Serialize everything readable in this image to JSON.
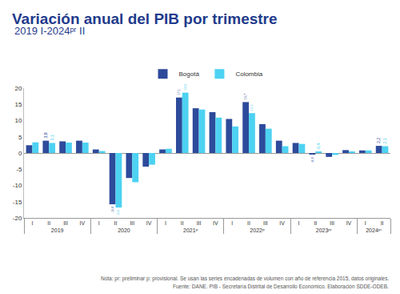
{
  "chart_data": {
    "type": "bar",
    "title": "Variación anual del PIB por trimestre",
    "subtitle": "2019 I-2024ᵖʳ II",
    "categories": [
      [
        "2019",
        "I"
      ],
      [
        "2019",
        "II"
      ],
      [
        "2019",
        "III"
      ],
      [
        "2019",
        "IV"
      ],
      [
        "2020",
        "I"
      ],
      [
        "2020",
        "II"
      ],
      [
        "2020",
        "III"
      ],
      [
        "2020",
        "IV"
      ],
      [
        "2021ᵖ",
        "I"
      ],
      [
        "2021ᵖ",
        "II"
      ],
      [
        "2021ᵖ",
        "III"
      ],
      [
        "2021ᵖ",
        "IV"
      ],
      [
        "2022ᵖ",
        "I"
      ],
      [
        "2022ᵖ",
        "II"
      ],
      [
        "2022ᵖ",
        "III"
      ],
      [
        "2022ᵖ",
        "IV"
      ],
      [
        "2023ᵖʳ",
        "I"
      ],
      [
        "2023ᵖʳ",
        "II"
      ],
      [
        "2023ᵖʳ",
        "III"
      ],
      [
        "2023ᵖʳ",
        "IV"
      ],
      [
        "2024ᵖʳ",
        "I"
      ],
      [
        "2024ᵖʳ",
        "II"
      ]
    ],
    "series": [
      {
        "name": "Bogotá",
        "color": "#2d4a9b",
        "values": [
          2.4,
          3.8,
          3.6,
          3.8,
          1.1,
          -15.8,
          -7.7,
          -4.2,
          1.1,
          17.1,
          13.8,
          12.6,
          10.5,
          15.7,
          8.9,
          3.8,
          3.1,
          -0.3,
          -1.2,
          0.9,
          0.8,
          2.2
        ],
        "value_labels": [
          null,
          "3,8",
          null,
          null,
          null,
          "-15,8",
          null,
          null,
          null,
          "17,1",
          null,
          null,
          null,
          "15,7",
          null,
          null,
          null,
          "-0,3",
          null,
          null,
          null,
          "2,2"
        ]
      },
      {
        "name": "Colombia",
        "color": "#4dd2f2",
        "values": [
          3.3,
          3.1,
          3.2,
          3.2,
          0.6,
          -16.8,
          -9.0,
          -3.6,
          1.3,
          18.6,
          13.4,
          10.9,
          8.2,
          12.3,
          7.5,
          2.1,
          2.8,
          0.4,
          -0.6,
          0.3,
          0.8,
          2.1
        ],
        "value_labels": [
          null,
          "3,1",
          null,
          null,
          null,
          "-16,8",
          null,
          null,
          null,
          "18,6",
          null,
          null,
          null,
          "12,3",
          null,
          null,
          null,
          "0,4",
          null,
          null,
          null,
          "2,1"
        ]
      }
    ],
    "ylim": [
      -20,
      20
    ],
    "yticks": [
      -20,
      -15,
      -10,
      -5,
      0,
      5,
      10,
      15,
      20
    ],
    "grid": false,
    "legend": "top",
    "data_labels": true,
    "notes": [
      "Nota: pr: preliminar p: provisional. Se usan las series encadenadas de volumen con año de referencia 2015, datos originales.",
      "Fuente: DANE. PIB - Secretaría Distrital de Desarrollo Económico. Elaboración SDDE-ODEB."
    ]
  }
}
